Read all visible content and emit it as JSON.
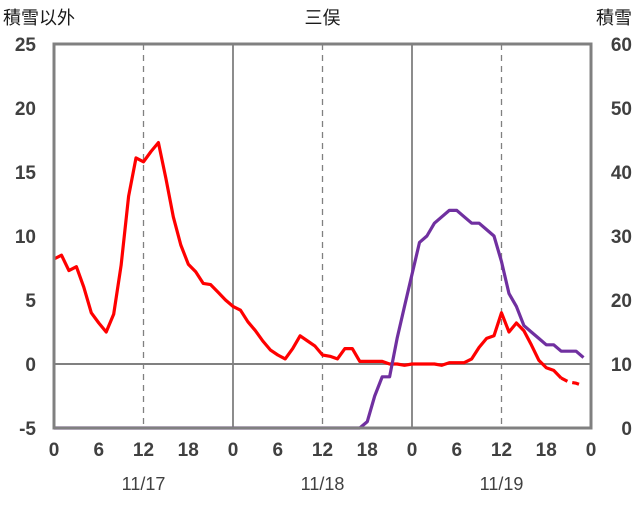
{
  "chart_data": {
    "type": "line",
    "title": "三俣",
    "y_left_label": "積雪以外",
    "y_right_label": "積雪",
    "ylim_left": [
      -5,
      25
    ],
    "ylim_right": [
      0,
      60
    ],
    "y_left_ticks": [
      "-5",
      "0",
      "5",
      "10",
      "15",
      "20",
      "25"
    ],
    "y_right_ticks": [
      "0",
      "10",
      "20",
      "30",
      "40",
      "50",
      "60"
    ],
    "x_hours_range": [
      0,
      72
    ],
    "x_tick_labels": [
      "0",
      "6",
      "12",
      "18",
      "0",
      "6",
      "12",
      "18",
      "0",
      "6",
      "12",
      "18",
      "0"
    ],
    "date_labels": [
      "11/17",
      "11/18",
      "11/19"
    ],
    "grid": "vertical solid at day boundaries, dashed at 12h",
    "colors": {
      "temperature": "#ff0000",
      "snow_depth": "#7030a0",
      "frame": "#808080"
    },
    "series": [
      {
        "axis": "left",
        "style": "solid",
        "x": [
          0,
          1,
          2,
          3,
          4,
          5,
          6,
          7,
          8,
          9,
          10,
          11,
          12,
          13,
          14,
          15,
          16,
          17,
          18,
          19,
          20,
          21,
          22,
          23,
          24,
          25,
          26,
          27,
          28,
          29,
          30,
          31,
          32,
          33,
          34,
          35,
          36,
          37,
          38,
          39,
          40,
          41,
          42,
          43,
          44,
          45,
          46,
          47,
          48,
          49,
          50,
          51,
          52,
          53,
          54,
          55,
          56,
          57,
          58,
          59,
          60,
          61,
          62,
          63,
          64,
          65,
          66,
          67,
          68
        ],
        "values": [
          8.2,
          8.5,
          7.3,
          7.6,
          6.0,
          4.0,
          3.2,
          2.5,
          3.9,
          7.7,
          13.1,
          16.1,
          15.8,
          16.6,
          17.3,
          14.5,
          11.5,
          9.3,
          7.8,
          7.2,
          6.3,
          6.2,
          5.6,
          5.0,
          4.5,
          4.2,
          3.3,
          2.6,
          1.8,
          1.1,
          0.7,
          0.4,
          1.2,
          2.2,
          1.8,
          1.4,
          0.7,
          0.6,
          0.4,
          1.2,
          1.2,
          0.2,
          0.2,
          0.2,
          0.2,
          0.0,
          0.0,
          -0.1,
          0.0,
          0.0,
          0.0,
          0.0,
          -0.1,
          0.1,
          0.1,
          0.1,
          0.4,
          1.3,
          2.0,
          2.2,
          4.0,
          2.5,
          3.2,
          2.6,
          1.5,
          0.3,
          -0.3,
          -0.5,
          -1.1
        ]
      },
      {
        "axis": "left",
        "style": "dashed",
        "x": [
          68,
          69,
          70,
          71
        ],
        "values": [
          -1.1,
          -1.4,
          -1.5,
          -1.7
        ]
      },
      {
        "axis": "right",
        "style": "solid",
        "x": [
          0,
          41,
          42,
          43,
          44,
          45,
          46,
          47,
          48,
          49,
          50,
          51,
          52,
          53,
          54,
          55,
          56,
          57,
          58,
          59,
          60,
          61,
          62,
          63,
          64,
          65,
          66,
          67,
          68,
          69,
          70,
          71
        ],
        "values": [
          0,
          0,
          1,
          5,
          8,
          8,
          14,
          19,
          24,
          29,
          30,
          32,
          33,
          34,
          34,
          33,
          32,
          32,
          31,
          30,
          26,
          21,
          19,
          16,
          15,
          14,
          13,
          13,
          12,
          12,
          12,
          11
        ]
      }
    ]
  }
}
